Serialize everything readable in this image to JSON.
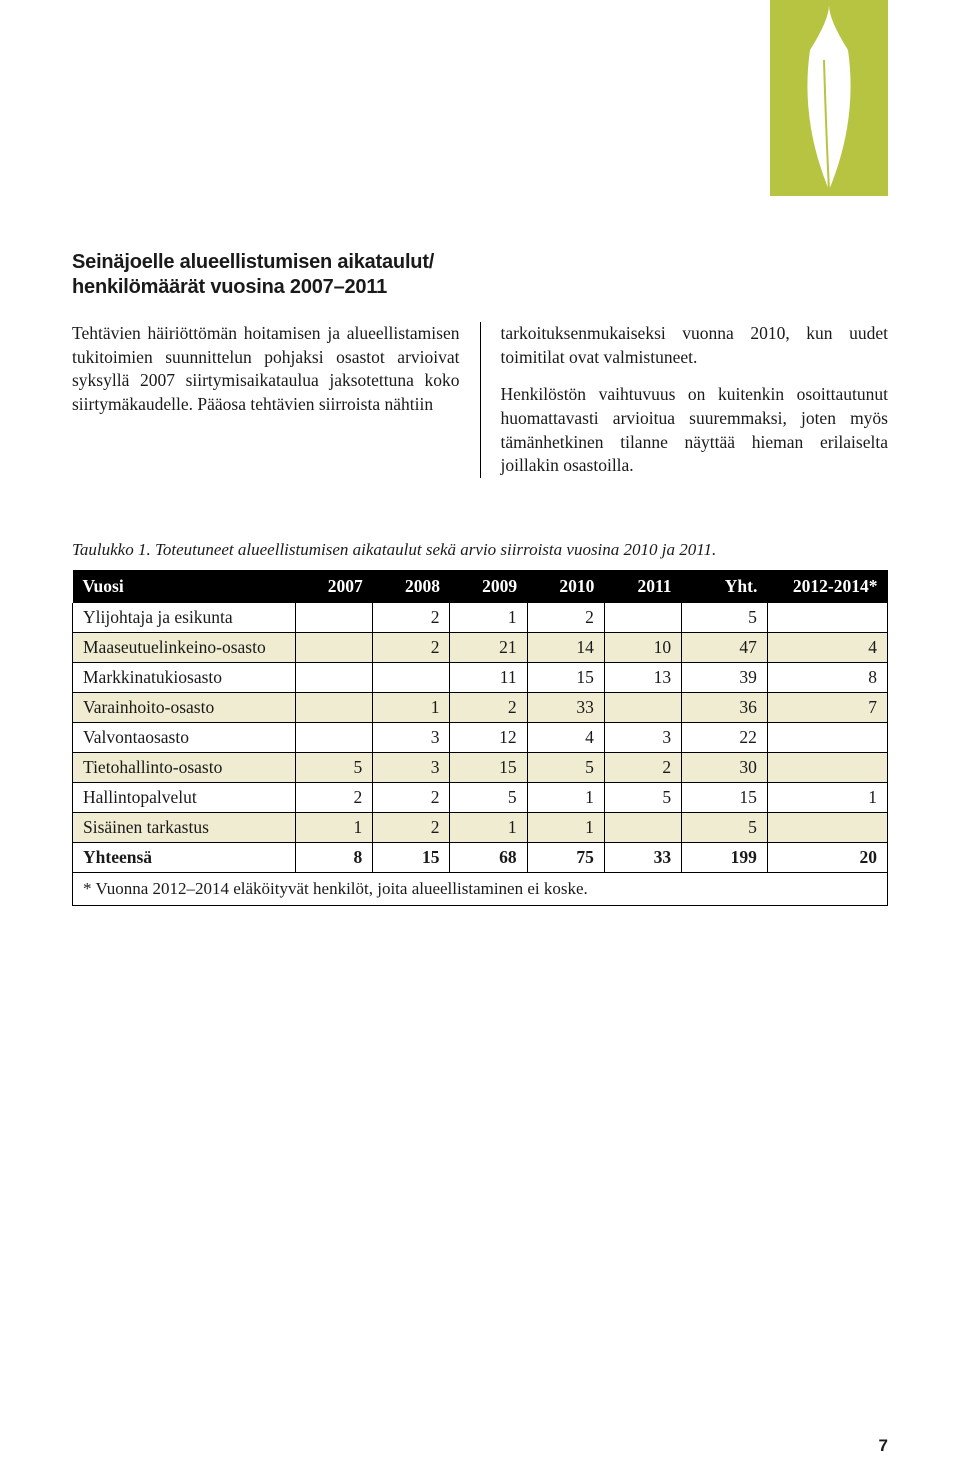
{
  "corner_graphic": {
    "bg_color": "#b7c441",
    "leaf_color": "#ffffff"
  },
  "heading": "Seinäjoelle alueellistumisen aikataulut/ henkilömäärät vuosina 2007–2011",
  "paragraphs": {
    "left": "Tehtävien häiriöttömän hoitamisen ja alueellistamisen tukitoimien suunnittelun pohjaksi osastot arvioivat syksyllä 2007 siirtymisaikataulua jaksotettuna koko siirtymäkaudelle. Pääosa tehtävien siirroista nähtiin",
    "right_p1": "tarkoituksenmukaiseksi vuonna 2010, kun uudet toimitilat ovat valmistuneet.",
    "right_p2": "Henkilöstön vaihtuvuus on kuitenkin osoittautunut huomattavasti arvioitua suuremmaksi, joten myös tämänhetkinen tilanne näyttää hieman erilaiselta joillakin osastoilla."
  },
  "table": {
    "caption": "Taulukko 1. Toteutuneet alueellistumisen aikataulut sekä arvio siirroista vuosina 2010 ja 2011.",
    "columns": [
      "Vuosi",
      "2007",
      "2008",
      "2009",
      "2010",
      "2011",
      "Yht.",
      "2012-2014*"
    ],
    "rows": [
      {
        "label": "Ylijohtaja ja esikunta",
        "cells": [
          "",
          "2",
          "1",
          "2",
          "",
          "5",
          ""
        ],
        "shade": false
      },
      {
        "label": "Maaseutuelinkeino-osasto",
        "cells": [
          "",
          "2",
          "21",
          "14",
          "10",
          "47",
          "4"
        ],
        "shade": true
      },
      {
        "label": "Markkinatukiosasto",
        "cells": [
          "",
          "",
          "11",
          "15",
          "13",
          "39",
          "8"
        ],
        "shade": false
      },
      {
        "label": "Varainhoito-osasto",
        "cells": [
          "",
          "1",
          "2",
          "33",
          "",
          "36",
          "7"
        ],
        "shade": true
      },
      {
        "label": "Valvontaosasto",
        "cells": [
          "",
          "3",
          "12",
          "4",
          "3",
          "22",
          ""
        ],
        "shade": false
      },
      {
        "label": "Tietohallinto-osasto",
        "cells": [
          "5",
          "3",
          "15",
          "5",
          "2",
          "30",
          ""
        ],
        "shade": true
      },
      {
        "label": "Hallintopalvelut",
        "cells": [
          "2",
          "2",
          "5",
          "1",
          "5",
          "15",
          "1"
        ],
        "shade": false
      },
      {
        "label": "Sisäinen tarkastus",
        "cells": [
          "1",
          "2",
          "1",
          "1",
          "",
          "5",
          ""
        ],
        "shade": true
      }
    ],
    "total_row": {
      "label": "Yhteensä",
      "cells": [
        "8",
        "15",
        "68",
        "75",
        "33",
        "199",
        "20"
      ]
    },
    "footnote": "* Vuonna 2012–2014 eläköityvät henkilöt, joita alueellistaminen ei koske.",
    "shade_color": "#efecd1",
    "header_bg": "#000000",
    "header_fg": "#ffffff",
    "font_size_pt": 13
  },
  "page_number": "7"
}
